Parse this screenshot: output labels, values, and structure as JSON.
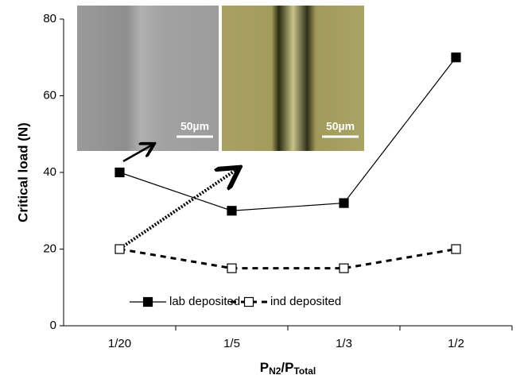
{
  "chart_data": {
    "type": "line",
    "y_label": "Critical load (N)",
    "x_label": [
      "P",
      "N2",
      "/P",
      "Total"
    ],
    "categories": [
      "1/20",
      "1/5",
      "1/3",
      "1/2"
    ],
    "series": [
      {
        "name": "lab deposited",
        "color": "#000000",
        "line_style": "solid",
        "marker_fill": "filled",
        "values": [
          40,
          30,
          32,
          70
        ]
      },
      {
        "name": "ind deposited",
        "color": "#000000",
        "line_style": "dashed",
        "marker_fill": "open",
        "values": [
          20,
          15,
          15,
          20
        ]
      }
    ],
    "ylim": [
      0,
      80
    ],
    "yticks": [
      0,
      20,
      40,
      60,
      80
    ],
    "grid": false,
    "legend": "bottom",
    "insets": [
      {
        "scale_label": "50µm"
      },
      {
        "scale_label": "50µm"
      }
    ]
  }
}
